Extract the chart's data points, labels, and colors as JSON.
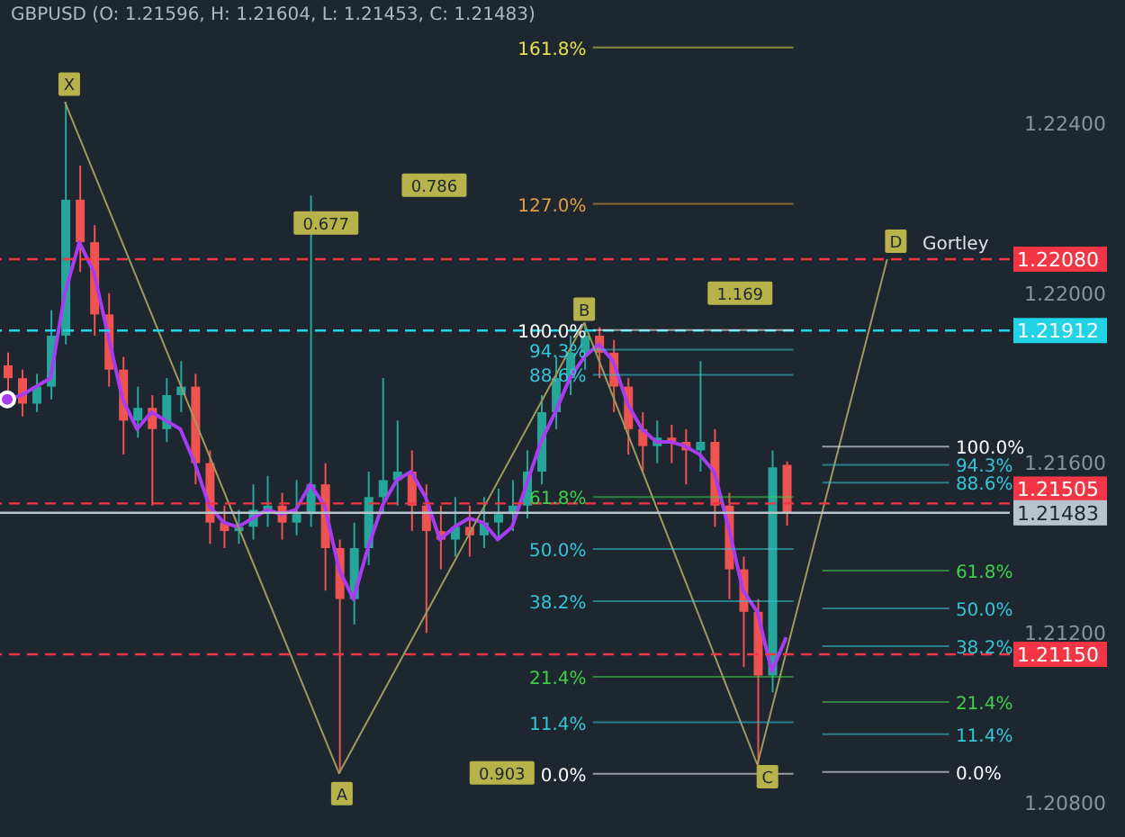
{
  "chart_data": {
    "type": "candlestick",
    "title": "GBPUSD (O: 1.21596, H: 1.21604, L: 1.21453, C: 1.21483)",
    "categories": [
      null,
      null,
      null,
      null,
      null,
      null,
      null,
      null,
      null,
      null,
      null,
      null,
      null,
      null,
      null,
      null,
      null,
      null,
      null,
      null,
      null,
      null,
      null,
      null,
      null,
      null,
      null,
      null,
      null,
      null,
      null,
      null,
      null,
      null,
      null,
      null,
      null,
      null,
      null,
      null,
      null,
      null,
      null,
      null,
      null,
      null,
      null,
      null,
      null,
      null,
      null,
      null,
      null,
      null,
      null,
      null,
      null,
      null,
      null,
      null,
      null,
      null,
      null,
      null,
      null,
      null,
      null,
      null,
      null,
      null
    ],
    "ohlc": [
      [
        1.2183,
        1.2186,
        1.2177,
        1.218
      ],
      [
        1.218,
        1.2182,
        1.2171,
        1.2174
      ],
      [
        1.2174,
        1.2181,
        1.2172,
        1.2178
      ],
      [
        1.2178,
        1.2196,
        1.2175,
        1.219
      ],
      [
        1.219,
        1.2245,
        1.2188,
        1.2222
      ],
      [
        1.2222,
        1.223,
        1.2205,
        1.2212
      ],
      [
        1.2212,
        1.2216,
        1.219,
        1.2195
      ],
      [
        1.2195,
        1.22,
        1.2178,
        1.2182
      ],
      [
        1.2182,
        1.2185,
        1.2162,
        1.217
      ],
      [
        1.217,
        1.2178,
        1.2166,
        1.2173
      ],
      [
        1.2173,
        1.2176,
        1.215,
        1.2168
      ],
      [
        1.2168,
        1.218,
        1.2165,
        1.2176
      ],
      [
        1.2176,
        1.2184,
        1.2172,
        1.2178
      ],
      [
        1.2178,
        1.2181,
        1.2155,
        1.216
      ],
      [
        1.216,
        1.2163,
        1.2141,
        1.2146
      ],
      [
        1.2146,
        1.215,
        1.214,
        1.2144
      ],
      [
        1.2144,
        1.2149,
        1.2141,
        1.2145
      ],
      [
        1.2145,
        1.2155,
        1.2142,
        1.2149
      ],
      [
        1.2149,
        1.2157,
        1.2145,
        1.215
      ],
      [
        1.215,
        1.2153,
        1.2142,
        1.2146
      ],
      [
        1.2146,
        1.2156,
        1.2143,
        1.2148
      ],
      [
        1.2148,
        1.2223,
        1.2145,
        1.2155
      ],
      [
        1.2155,
        1.216,
        1.213,
        1.214
      ],
      [
        1.214,
        1.2142,
        1.2087,
        1.2128
      ],
      [
        1.2128,
        1.2146,
        1.2122,
        1.214
      ],
      [
        1.214,
        1.2158,
        1.2136,
        1.2152
      ],
      [
        1.2152,
        1.218,
        1.2148,
        1.2156
      ],
      [
        1.2156,
        1.217,
        1.215,
        1.2158
      ],
      [
        1.2158,
        1.2163,
        1.2144,
        1.215
      ],
      [
        1.215,
        1.2155,
        1.212,
        1.2144
      ],
      [
        1.2144,
        1.215,
        1.2135,
        1.2142
      ],
      [
        1.2142,
        1.2152,
        1.2138,
        1.2145
      ],
      [
        1.2145,
        1.215,
        1.2138,
        1.2143
      ],
      [
        1.2143,
        1.2152,
        1.214,
        1.2146
      ],
      [
        1.2146,
        1.2154,
        1.2142,
        1.2148
      ],
      [
        1.2148,
        1.2156,
        1.2144,
        1.215
      ],
      [
        1.215,
        1.2163,
        1.2147,
        1.2158
      ],
      [
        1.2158,
        1.2176,
        1.2155,
        1.2172
      ],
      [
        1.2172,
        1.2185,
        1.2168,
        1.218
      ],
      [
        1.218,
        1.219,
        1.2176,
        1.2186
      ],
      [
        1.2186,
        1.2193,
        1.2182,
        1.219
      ],
      [
        1.219,
        1.2192,
        1.218,
        1.2186
      ],
      [
        1.2186,
        1.2189,
        1.2172,
        1.2178
      ],
      [
        1.2178,
        1.218,
        1.2162,
        1.2168
      ],
      [
        1.2168,
        1.2172,
        1.2158,
        1.2164
      ],
      [
        1.2164,
        1.217,
        1.216,
        1.2166
      ],
      [
        1.2166,
        1.2169,
        1.216,
        1.2165
      ],
      [
        1.2165,
        1.2168,
        1.2155,
        1.2163
      ],
      [
        1.2163,
        1.2184,
        1.2158,
        1.2165
      ],
      [
        1.2165,
        1.2168,
        1.2145,
        1.215
      ],
      [
        1.215,
        1.2153,
        1.2128,
        1.2135
      ],
      [
        1.2135,
        1.2138,
        1.2112,
        1.2125
      ],
      [
        1.2125,
        1.2128,
        1.2089,
        1.211
      ],
      [
        1.211,
        1.2163,
        1.2106,
        1.2159
      ],
      [
        1.21596,
        1.21604,
        1.21453,
        1.21483
      ],
      null,
      null,
      null,
      null,
      null,
      null,
      null,
      null,
      null,
      null,
      null,
      null,
      null,
      null,
      null
    ],
    "series": [
      {
        "type": "line",
        "color": "#a83cf0",
        "values": [
          1.2175,
          1.2176,
          1.2178,
          1.218,
          1.22,
          1.2212,
          1.2205,
          1.219,
          1.2175,
          1.2168,
          1.2172,
          1.217,
          1.2168,
          1.216,
          1.215,
          1.2146,
          1.2145,
          1.2147,
          1.2149,
          1.2148,
          1.2149,
          1.2155,
          1.215,
          1.2135,
          1.2128,
          1.214,
          1.215,
          1.2156,
          1.2158,
          1.2152,
          1.2142,
          1.2145,
          1.2147,
          1.2146,
          1.2142,
          1.2145,
          1.2155,
          1.2165,
          1.2172,
          1.218,
          1.2185,
          1.2188,
          1.2184,
          1.2174,
          1.2168,
          1.2165,
          1.2165,
          1.2164,
          1.2162,
          1.2158,
          1.2145,
          1.213,
          1.2125,
          1.2111,
          1.2119,
          null,
          null,
          null,
          null,
          null,
          null,
          null,
          null,
          null,
          null,
          null,
          null,
          null,
          null,
          null
        ]
      },
      {
        "type": "line",
        "color": "#a09a5c",
        "values": [
          null,
          null,
          null,
          null,
          1.2245,
          null,
          null,
          null,
          null,
          null,
          null,
          null,
          null,
          null,
          null,
          null,
          null,
          null,
          null,
          null,
          null,
          null,
          null,
          1.2087,
          null,
          null,
          null,
          null,
          null,
          null,
          null,
          null,
          null,
          null,
          null,
          null,
          null,
          null,
          null,
          null,
          1.2193,
          null,
          null,
          null,
          null,
          null,
          null,
          null,
          null,
          null,
          null,
          null,
          1.2089,
          null,
          null,
          null,
          null,
          null,
          null,
          null,
          null,
          1.2208,
          null,
          null,
          null,
          null,
          null,
          null,
          null,
          null
        ]
      }
    ],
    "ylim": [
      1.2072,
      1.2269
    ],
    "yticks": [
      {
        "value": 1.224,
        "label": "1.22400"
      },
      {
        "value": 1.22,
        "label": "1.22000"
      },
      {
        "value": 1.216,
        "label": "1.21600"
      },
      {
        "value": 1.212,
        "label": "1.21200"
      },
      {
        "value": 1.208,
        "label": "1.20800"
      }
    ],
    "tick_labels": "y",
    "ref_lines": [
      {
        "axis": "y",
        "value": 1.2208,
        "label": "1.22080",
        "color": "#f23645",
        "line_style": "dashed"
      },
      {
        "axis": "y",
        "value": 1.21912,
        "label": "1.21912",
        "color": "#22d3e6",
        "line_style": "dashed"
      },
      {
        "axis": "y",
        "value": 1.21505,
        "label": "1.21505",
        "color": "#f23645",
        "line_style": "dashed"
      },
      {
        "axis": "y",
        "value": 1.21483,
        "label": "1.21483",
        "color": "#b8c4cc",
        "line_style": "solid"
      },
      {
        "axis": "y",
        "value": 1.2115,
        "label": "1.21150",
        "color": "#f23645",
        "line_style": "dashed"
      },
      {
        "axis": "y",
        "value": 1.22578,
        "color": "#e6e04a"
      },
      {
        "axis": "y",
        "value": 1.2221,
        "color": "#e0a040"
      },
      {
        "axis": "y",
        "value": 1.21913,
        "color": "#ffffff"
      },
      {
        "axis": "y",
        "value": 1.21867,
        "color": "#34c6d6"
      },
      {
        "axis": "y",
        "value": 1.21808,
        "color": "#34c6d6"
      },
      {
        "axis": "y",
        "value": 1.2152,
        "color": "#3ed04a"
      },
      {
        "axis": "y",
        "value": 1.21398,
        "color": "#34c6d6"
      },
      {
        "axis": "y",
        "value": 1.21275,
        "color": "#34c6d6"
      },
      {
        "axis": "y",
        "value": 1.21097,
        "color": "#3ed04a"
      },
      {
        "axis": "y",
        "value": 1.2099,
        "color": "#34c6d6"
      },
      {
        "axis": "y",
        "value": 1.20869,
        "color": "#ffffff"
      },
      {
        "axis": "y",
        "value": 1.21639,
        "color": "#ffffff"
      },
      {
        "axis": "y",
        "value": 1.21596,
        "color": "#34c6d6"
      },
      {
        "axis": "y",
        "value": 1.21554,
        "color": "#34c6d6"
      },
      {
        "axis": "y",
        "value": 1.21347,
        "color": "#3ed04a"
      },
      {
        "axis": "y",
        "value": 1.21258,
        "color": "#34c6d6"
      },
      {
        "axis": "y",
        "value": 1.21169,
        "color": "#34c6d6"
      },
      {
        "axis": "y",
        "value": 1.21038,
        "color": "#3ed04a"
      },
      {
        "axis": "y",
        "value": 1.20962,
        "color": "#34c6d6"
      },
      {
        "axis": "y",
        "value": 1.20873,
        "color": "#ffffff"
      }
    ],
    "annotations": [
      "161.8%",
      "127.0%",
      "100.0%",
      "94.3%",
      "88.6%",
      "61.8%",
      "50.0%",
      "38.2%",
      "21.4%",
      "11.4%",
      "0.0%",
      "100.0%",
      "94.3%",
      "88.6%",
      "61.8%",
      "50.0%",
      "38.2%",
      "21.4%",
      "11.4%",
      "0.0%",
      {
        "text": "X",
        "y": 1.2249
      },
      {
        "text": "A",
        "y": 1.2082
      },
      {
        "text": "B",
        "y": 1.2196
      },
      {
        "text": "C",
        "y": 1.2086
      },
      {
        "text": "D",
        "y": 1.2212
      },
      "Gortley",
      {
        "text": "0.786",
        "y": 1.22252
      },
      {
        "text": "0.677",
        "y": 1.22163
      },
      {
        "text": "1.169",
        "y": 1.21998
      },
      {
        "text": "0.903",
        "y": 1.20869
      }
    ]
  }
}
